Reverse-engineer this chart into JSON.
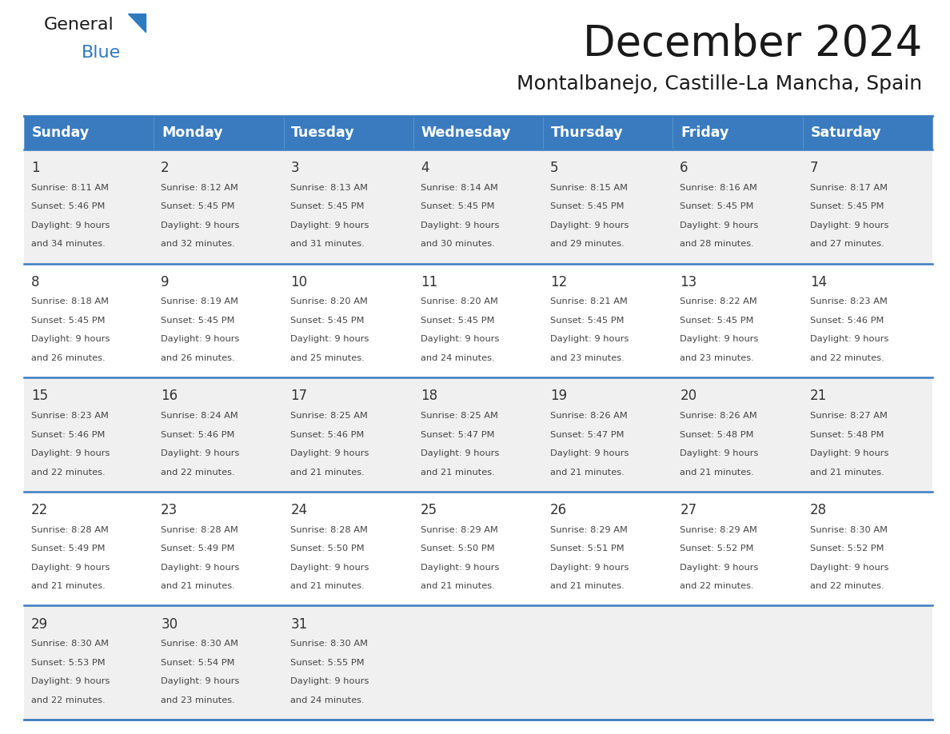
{
  "title": "December 2024",
  "subtitle": "Montalbanejo, Castille-La Mancha, Spain",
  "header_bg_color": "#3a7bbf",
  "header_text_color": "#ffffff",
  "days_of_week": [
    "Sunday",
    "Monday",
    "Tuesday",
    "Wednesday",
    "Thursday",
    "Friday",
    "Saturday"
  ],
  "row_bg_colors": [
    "#f0f0f0",
    "#ffffff"
  ],
  "divider_color": "#3a7bbf",
  "text_color": "#333333",
  "calendar_data": [
    [
      {
        "day": 1,
        "sunrise": "8:11 AM",
        "sunset": "5:46 PM",
        "daylight_hours": 9,
        "daylight_minutes": 34
      },
      {
        "day": 2,
        "sunrise": "8:12 AM",
        "sunset": "5:45 PM",
        "daylight_hours": 9,
        "daylight_minutes": 32
      },
      {
        "day": 3,
        "sunrise": "8:13 AM",
        "sunset": "5:45 PM",
        "daylight_hours": 9,
        "daylight_minutes": 31
      },
      {
        "day": 4,
        "sunrise": "8:14 AM",
        "sunset": "5:45 PM",
        "daylight_hours": 9,
        "daylight_minutes": 30
      },
      {
        "day": 5,
        "sunrise": "8:15 AM",
        "sunset": "5:45 PM",
        "daylight_hours": 9,
        "daylight_minutes": 29
      },
      {
        "day": 6,
        "sunrise": "8:16 AM",
        "sunset": "5:45 PM",
        "daylight_hours": 9,
        "daylight_minutes": 28
      },
      {
        "day": 7,
        "sunrise": "8:17 AM",
        "sunset": "5:45 PM",
        "daylight_hours": 9,
        "daylight_minutes": 27
      }
    ],
    [
      {
        "day": 8,
        "sunrise": "8:18 AM",
        "sunset": "5:45 PM",
        "daylight_hours": 9,
        "daylight_minutes": 26
      },
      {
        "day": 9,
        "sunrise": "8:19 AM",
        "sunset": "5:45 PM",
        "daylight_hours": 9,
        "daylight_minutes": 26
      },
      {
        "day": 10,
        "sunrise": "8:20 AM",
        "sunset": "5:45 PM",
        "daylight_hours": 9,
        "daylight_minutes": 25
      },
      {
        "day": 11,
        "sunrise": "8:20 AM",
        "sunset": "5:45 PM",
        "daylight_hours": 9,
        "daylight_minutes": 24
      },
      {
        "day": 12,
        "sunrise": "8:21 AM",
        "sunset": "5:45 PM",
        "daylight_hours": 9,
        "daylight_minutes": 23
      },
      {
        "day": 13,
        "sunrise": "8:22 AM",
        "sunset": "5:45 PM",
        "daylight_hours": 9,
        "daylight_minutes": 23
      },
      {
        "day": 14,
        "sunrise": "8:23 AM",
        "sunset": "5:46 PM",
        "daylight_hours": 9,
        "daylight_minutes": 22
      }
    ],
    [
      {
        "day": 15,
        "sunrise": "8:23 AM",
        "sunset": "5:46 PM",
        "daylight_hours": 9,
        "daylight_minutes": 22
      },
      {
        "day": 16,
        "sunrise": "8:24 AM",
        "sunset": "5:46 PM",
        "daylight_hours": 9,
        "daylight_minutes": 22
      },
      {
        "day": 17,
        "sunrise": "8:25 AM",
        "sunset": "5:46 PM",
        "daylight_hours": 9,
        "daylight_minutes": 21
      },
      {
        "day": 18,
        "sunrise": "8:25 AM",
        "sunset": "5:47 PM",
        "daylight_hours": 9,
        "daylight_minutes": 21
      },
      {
        "day": 19,
        "sunrise": "8:26 AM",
        "sunset": "5:47 PM",
        "daylight_hours": 9,
        "daylight_minutes": 21
      },
      {
        "day": 20,
        "sunrise": "8:26 AM",
        "sunset": "5:48 PM",
        "daylight_hours": 9,
        "daylight_minutes": 21
      },
      {
        "day": 21,
        "sunrise": "8:27 AM",
        "sunset": "5:48 PM",
        "daylight_hours": 9,
        "daylight_minutes": 21
      }
    ],
    [
      {
        "day": 22,
        "sunrise": "8:28 AM",
        "sunset": "5:49 PM",
        "daylight_hours": 9,
        "daylight_minutes": 21
      },
      {
        "day": 23,
        "sunrise": "8:28 AM",
        "sunset": "5:49 PM",
        "daylight_hours": 9,
        "daylight_minutes": 21
      },
      {
        "day": 24,
        "sunrise": "8:28 AM",
        "sunset": "5:50 PM",
        "daylight_hours": 9,
        "daylight_minutes": 21
      },
      {
        "day": 25,
        "sunrise": "8:29 AM",
        "sunset": "5:50 PM",
        "daylight_hours": 9,
        "daylight_minutes": 21
      },
      {
        "day": 26,
        "sunrise": "8:29 AM",
        "sunset": "5:51 PM",
        "daylight_hours": 9,
        "daylight_minutes": 21
      },
      {
        "day": 27,
        "sunrise": "8:29 AM",
        "sunset": "5:52 PM",
        "daylight_hours": 9,
        "daylight_minutes": 22
      },
      {
        "day": 28,
        "sunrise": "8:30 AM",
        "sunset": "5:52 PM",
        "daylight_hours": 9,
        "daylight_minutes": 22
      }
    ],
    [
      {
        "day": 29,
        "sunrise": "8:30 AM",
        "sunset": "5:53 PM",
        "daylight_hours": 9,
        "daylight_minutes": 22
      },
      {
        "day": 30,
        "sunrise": "8:30 AM",
        "sunset": "5:54 PM",
        "daylight_hours": 9,
        "daylight_minutes": 23
      },
      {
        "day": 31,
        "sunrise": "8:30 AM",
        "sunset": "5:55 PM",
        "daylight_hours": 9,
        "daylight_minutes": 24
      },
      null,
      null,
      null,
      null
    ]
  ],
  "logo_text_general": "General",
  "logo_text_blue": "Blue",
  "logo_triangle_color": "#2e7abf",
  "fig_width": 11.88,
  "fig_height": 9.18,
  "dpi": 100
}
